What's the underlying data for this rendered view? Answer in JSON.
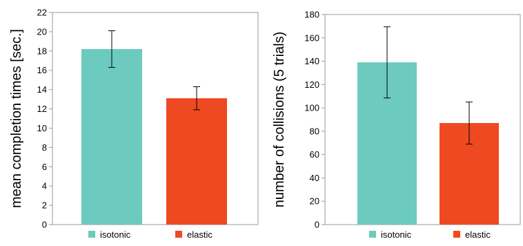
{
  "chart_data": [
    {
      "type": "bar",
      "categories": [
        "isotonic",
        "elastic"
      ],
      "values": [
        18.2,
        13.1
      ],
      "error": [
        1.9,
        1.2
      ],
      "colors": [
        "#6CCBBE",
        "#EF4922"
      ],
      "ylabel": "mean completion times [sec.]",
      "ylim": [
        0,
        22
      ],
      "yticks": [
        "0",
        "2",
        "4",
        "6",
        "8",
        "10",
        "12",
        "14",
        "16",
        "18",
        "20",
        "22"
      ],
      "legend": [
        "isotonic",
        "elastic"
      ],
      "legend_position": "bottom",
      "grid": false
    },
    {
      "type": "bar",
      "categories": [
        "isotonic",
        "elastic"
      ],
      "values": [
        139,
        87
      ],
      "error": [
        30.5,
        18
      ],
      "colors": [
        "#6CCBBE",
        "#EF4922"
      ],
      "ylabel": "number of collisions (5 trials)",
      "ylim": [
        0,
        180
      ],
      "yticks": [
        "0",
        "20",
        "40",
        "60",
        "80",
        "100",
        "120",
        "140",
        "160",
        "180"
      ],
      "legend": [
        "isotonic",
        "elastic"
      ],
      "legend_position": "bottom",
      "grid": false
    }
  ]
}
